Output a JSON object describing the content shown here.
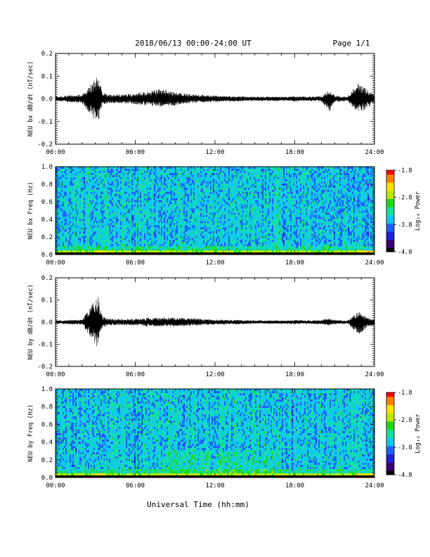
{
  "header": {
    "date_range": "2018/06/13  00:00-24:00 UT",
    "page": "Page 1/1"
  },
  "colorbar_colors": [
    "#000000",
    "#3a0070",
    "#1e22d8",
    "#1e60ff",
    "#10c8f0",
    "#18e0a0",
    "#20d818",
    "#b8e800",
    "#ffe000",
    "#ff8000",
    "#ff0000"
  ],
  "chart_data": [
    {
      "type": "line",
      "ylabel": "NEU bx dB/dt (nT/sec)",
      "ylim": [
        -0.2,
        0.2
      ],
      "yticks": [
        "0.2",
        "0.1",
        "0.0",
        "-0.1",
        "-0.2"
      ],
      "xlim": [
        "00:00",
        "24:00"
      ],
      "xticks": [
        "00:00",
        "06:00",
        "12:00",
        "18:00",
        "24:00"
      ],
      "series": [
        {
          "x": [
            0,
            1,
            2,
            3.2,
            3.35,
            3.5,
            4,
            5,
            6,
            7,
            8,
            9,
            10,
            11,
            12,
            13,
            14,
            15,
            16,
            17,
            18,
            19,
            20,
            20.6,
            21,
            22,
            22.8,
            23,
            23.5,
            24
          ],
          "max": [
            0.01,
            0.015,
            0.02,
            0.1,
            0.09,
            0.03,
            0.02,
            0.02,
            0.025,
            0.035,
            0.045,
            0.03,
            0.022,
            0.018,
            0.015,
            0.012,
            0.012,
            0.01,
            0.01,
            0.01,
            0.012,
            0.01,
            0.012,
            0.04,
            0.015,
            0.01,
            0.075,
            0.06,
            0.04,
            0.02
          ],
          "min": [
            -0.01,
            -0.015,
            -0.02,
            -0.12,
            -0.06,
            -0.03,
            -0.02,
            -0.02,
            -0.025,
            -0.03,
            -0.035,
            -0.03,
            -0.02,
            -0.016,
            -0.014,
            -0.012,
            -0.012,
            -0.01,
            -0.01,
            -0.01,
            -0.012,
            -0.01,
            -0.012,
            -0.06,
            -0.015,
            -0.01,
            -0.07,
            -0.06,
            -0.04,
            -0.02
          ]
        }
      ]
    },
    {
      "type": "heatmap",
      "ylabel": "NEU bx Freq (Hz)",
      "ylim": [
        0.0,
        1.0
      ],
      "yticks": [
        "1.0",
        "0.8",
        "0.6",
        "0.4",
        "0.2",
        "0.0"
      ],
      "xlim": [
        "00:00",
        "24:00"
      ],
      "xticks": [
        "00:00",
        "06:00",
        "12:00",
        "18:00",
        "24:00"
      ],
      "colorbar_label": "Log₁₀ Power",
      "colorbar_ticks": [
        "-1.8",
        "-2.8",
        "-3.8",
        "-4.8"
      ],
      "zlim": [
        -4.8,
        -1.8
      ]
    },
    {
      "type": "line",
      "ylabel": "NEU by dB/dt (nT/sec)",
      "ylim": [
        -0.2,
        0.2
      ],
      "yticks": [
        "0.2",
        "0.1",
        "0.0",
        "-0.1",
        "-0.2"
      ],
      "xlim": [
        "00:00",
        "24:00"
      ],
      "xticks": [
        "00:00",
        "06:00",
        "12:00",
        "18:00",
        "24:00"
      ],
      "series": [
        {
          "x": [
            0,
            1,
            2,
            3.2,
            3.35,
            3.5,
            4,
            5,
            6,
            7,
            8,
            9,
            10,
            11,
            12,
            13,
            14,
            15,
            16,
            17,
            18,
            19,
            20,
            20.6,
            21,
            22,
            22.8,
            23,
            23.5,
            24
          ],
          "max": [
            0.008,
            0.01,
            0.012,
            0.12,
            0.07,
            0.03,
            0.015,
            0.015,
            0.015,
            0.02,
            0.02,
            0.02,
            0.02,
            0.015,
            0.012,
            0.01,
            0.01,
            0.008,
            0.008,
            0.008,
            0.01,
            0.008,
            0.01,
            0.02,
            0.01,
            0.008,
            0.05,
            0.04,
            0.02,
            0.015
          ],
          "min": [
            -0.008,
            -0.01,
            -0.012,
            -0.12,
            -0.05,
            -0.03,
            -0.015,
            -0.015,
            -0.015,
            -0.02,
            -0.02,
            -0.02,
            -0.018,
            -0.014,
            -0.012,
            -0.01,
            -0.01,
            -0.008,
            -0.008,
            -0.008,
            -0.01,
            -0.008,
            -0.01,
            -0.015,
            -0.01,
            -0.008,
            -0.06,
            -0.05,
            -0.02,
            -0.015
          ]
        }
      ]
    },
    {
      "type": "heatmap",
      "ylabel": "NEU by Freq (Hz)",
      "ylim": [
        0.0,
        1.0
      ],
      "yticks": [
        "1.0",
        "0.8",
        "0.6",
        "0.4",
        "0.2",
        "0.0"
      ],
      "xlim": [
        "00:00",
        "24:00"
      ],
      "xticks": [
        "00:00",
        "06:00",
        "12:00",
        "18:00",
        "24:00"
      ],
      "xlabel": "Universal Time (hh:mm)",
      "colorbar_label": "Log₁₀ Power",
      "colorbar_ticks": [
        "-1.8",
        "-2.8",
        "-3.8",
        "-4.8"
      ],
      "zlim": [
        -4.8,
        -1.8
      ]
    }
  ]
}
